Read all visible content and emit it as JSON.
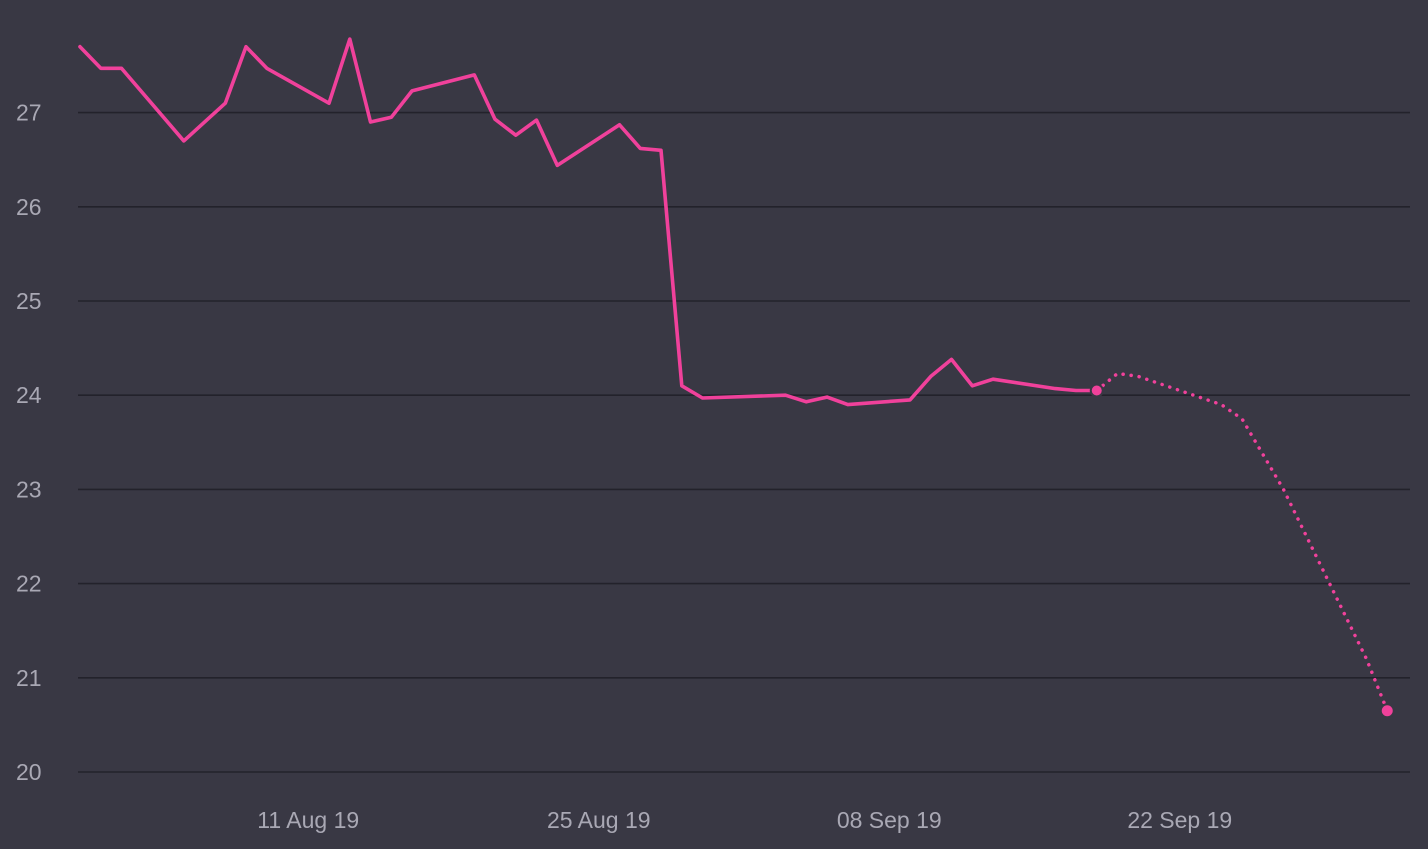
{
  "chart_data": {
    "type": "line",
    "title": "",
    "xlabel": "",
    "ylabel": "",
    "ylim": [
      20,
      27.8
    ],
    "yticks": [
      20,
      21,
      22,
      23,
      24,
      25,
      26,
      27
    ],
    "ytick_labels": [
      "20",
      "21",
      "22",
      "23",
      "24",
      "25",
      "26",
      "27"
    ],
    "xlim": [
      "2019-07-31",
      "2019-10-03"
    ],
    "xticks": [
      "2019-08-11",
      "2019-08-25",
      "2019-09-08",
      "2019-09-22"
    ],
    "xtick_labels": [
      "11 Aug 19",
      "25 Aug 19",
      "08 Sep 19",
      "22 Sep 19"
    ],
    "grid": true,
    "legend": "none",
    "colors": {
      "background": "#393844",
      "grid": "#23222b",
      "line": "#f0419b",
      "tick_text": "#a9a8b4"
    },
    "series": [
      {
        "style": "solid",
        "points": [
          [
            "2019-07-31",
            27.7
          ],
          [
            "2019-08-01",
            27.47
          ],
          [
            "2019-08-02",
            27.47
          ],
          [
            "2019-08-05",
            26.7
          ],
          [
            "2019-08-07",
            27.1
          ],
          [
            "2019-08-08",
            27.7
          ],
          [
            "2019-08-09",
            27.47
          ],
          [
            "2019-08-12",
            27.1
          ],
          [
            "2019-08-13",
            27.78
          ],
          [
            "2019-08-14",
            26.9
          ],
          [
            "2019-08-15",
            26.95
          ],
          [
            "2019-08-16",
            27.23
          ],
          [
            "2019-08-19",
            27.4
          ],
          [
            "2019-08-20",
            26.93
          ],
          [
            "2019-08-21",
            26.76
          ],
          [
            "2019-08-22",
            26.92
          ],
          [
            "2019-08-23",
            26.44
          ],
          [
            "2019-08-26",
            26.87
          ],
          [
            "2019-08-27",
            26.62
          ],
          [
            "2019-08-28",
            26.6
          ],
          [
            "2019-08-29",
            24.1
          ],
          [
            "2019-08-30",
            23.97
          ],
          [
            "2019-09-03",
            24.0
          ],
          [
            "2019-09-04",
            23.93
          ],
          [
            "2019-09-05",
            23.98
          ],
          [
            "2019-09-06",
            23.9
          ],
          [
            "2019-09-09",
            23.95
          ],
          [
            "2019-09-10",
            24.2
          ],
          [
            "2019-09-11",
            24.38
          ],
          [
            "2019-09-12",
            24.1
          ],
          [
            "2019-09-13",
            24.17
          ],
          [
            "2019-09-16",
            24.07
          ],
          [
            "2019-09-17",
            24.05
          ],
          [
            "2019-09-18",
            24.05
          ]
        ]
      },
      {
        "style": "dotted",
        "points": [
          [
            "2019-09-18",
            24.05
          ],
          [
            "2019-09-19",
            24.23
          ],
          [
            "2019-09-20",
            24.2
          ],
          [
            "2019-09-22",
            24.05
          ],
          [
            "2019-09-24",
            23.9
          ],
          [
            "2019-09-25",
            23.75
          ],
          [
            "2019-09-27",
            23.0
          ],
          [
            "2019-09-29",
            22.1
          ],
          [
            "2019-10-01",
            21.2
          ],
          [
            "2019-10-02",
            20.65
          ]
        ]
      }
    ]
  }
}
